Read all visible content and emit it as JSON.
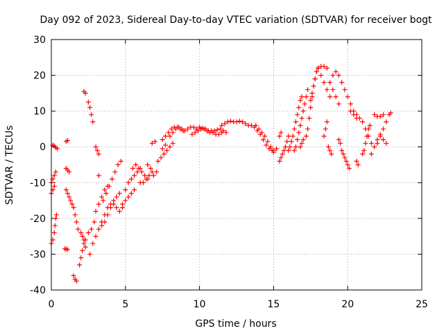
{
  "chart_data": {
    "type": "scatter",
    "title": "Day 092 of 2023, Sidereal Day-to-day VTEC variation (SDTVAR) for receiver bogt",
    "xlabel": "GPS time / hours",
    "ylabel": "SDTVAR / TECUs",
    "xlim": [
      0,
      25
    ],
    "ylim": [
      -40,
      30
    ],
    "x_ticks": [
      0,
      5,
      10,
      15,
      20,
      25
    ],
    "y_ticks": [
      -40,
      -30,
      -20,
      -10,
      0,
      10,
      20,
      30
    ],
    "x_tick_labels": [
      "0",
      "5",
      "10",
      "15",
      "20",
      "25"
    ],
    "y_tick_labels": [
      "-40",
      "-30",
      "-20",
      "-10",
      "0",
      "10",
      "20",
      "30"
    ],
    "grid": true,
    "marker": "plus",
    "color": "#ff0000",
    "series": [
      {
        "name": "SDTVAR",
        "points": [
          [
            0.0,
            -27
          ],
          [
            0.1,
            -26
          ],
          [
            0.2,
            -24
          ],
          [
            0.25,
            -22
          ],
          [
            0.3,
            -20
          ],
          [
            0.35,
            -19
          ],
          [
            0.0,
            -13
          ],
          [
            0.1,
            -12
          ],
          [
            0.2,
            -11
          ],
          [
            0.0,
            -10
          ],
          [
            0.1,
            -9
          ],
          [
            0.2,
            -8
          ],
          [
            0.3,
            -7
          ],
          [
            0.1,
            0.5
          ],
          [
            0.2,
            0.3
          ],
          [
            0.3,
            -0.2
          ],
          [
            0.4,
            -0.5
          ],
          [
            0.9,
            -28.5
          ],
          [
            1.0,
            -28.5
          ],
          [
            1.1,
            -28.7
          ],
          [
            1.0,
            -6
          ],
          [
            1.1,
            -6.5
          ],
          [
            1.2,
            -7
          ],
          [
            1.0,
            1.5
          ],
          [
            1.1,
            1.8
          ],
          [
            1.0,
            -12
          ],
          [
            1.1,
            -13
          ],
          [
            1.2,
            -14
          ],
          [
            1.3,
            -15
          ],
          [
            1.4,
            -16
          ],
          [
            1.5,
            -17
          ],
          [
            1.6,
            -19
          ],
          [
            1.7,
            -21
          ],
          [
            1.8,
            -23
          ],
          [
            1.5,
            -36
          ],
          [
            1.6,
            -37
          ],
          [
            1.7,
            -37.5
          ],
          [
            1.9,
            -33
          ],
          [
            2.0,
            -31
          ],
          [
            2.1,
            -29
          ],
          [
            2.2,
            -27
          ],
          [
            2.3,
            -26
          ],
          [
            2.0,
            -24
          ],
          [
            2.1,
            -25
          ],
          [
            2.2,
            -26
          ],
          [
            2.3,
            -28
          ],
          [
            2.2,
            15.5
          ],
          [
            2.3,
            15
          ],
          [
            2.5,
            12.5
          ],
          [
            2.6,
            11
          ],
          [
            2.7,
            9
          ],
          [
            2.8,
            7
          ],
          [
            2.5,
            -24
          ],
          [
            2.7,
            -23
          ],
          [
            2.9,
            -21
          ],
          [
            3.0,
            -18
          ],
          [
            3.2,
            -16
          ],
          [
            3.4,
            -14
          ],
          [
            3.6,
            -12
          ],
          [
            3.8,
            -11
          ],
          [
            2.6,
            -30
          ],
          [
            2.8,
            -27
          ],
          [
            3.0,
            -25
          ],
          [
            3.2,
            -23
          ],
          [
            3.4,
            -21
          ],
          [
            3.6,
            -19
          ],
          [
            3.8,
            -17
          ],
          [
            4.0,
            -16
          ],
          [
            4.2,
            -15
          ],
          [
            4.4,
            -14
          ],
          [
            4.6,
            -13
          ],
          [
            3.0,
            0
          ],
          [
            3.1,
            -1
          ],
          [
            3.2,
            -2
          ],
          [
            3.2,
            -8
          ],
          [
            3.4,
            -22
          ],
          [
            3.6,
            -21
          ],
          [
            3.8,
            -19
          ],
          [
            4.0,
            -17
          ],
          [
            4.2,
            -16
          ],
          [
            4.4,
            -17
          ],
          [
            4.6,
            -18
          ],
          [
            4.8,
            -17
          ],
          [
            3.5,
            -15
          ],
          [
            3.7,
            -13
          ],
          [
            3.9,
            -11
          ],
          [
            4.1,
            -9
          ],
          [
            4.3,
            -7
          ],
          [
            4.5,
            -5
          ],
          [
            4.7,
            -4
          ],
          [
            4.8,
            -16
          ],
          [
            5.0,
            -15
          ],
          [
            5.2,
            -14
          ],
          [
            5.4,
            -13
          ],
          [
            5.6,
            -12
          ],
          [
            5.0,
            -12
          ],
          [
            5.2,
            -10
          ],
          [
            5.4,
            -9
          ],
          [
            5.6,
            -8
          ],
          [
            5.8,
            -7
          ],
          [
            6.0,
            -6
          ],
          [
            5.5,
            -6
          ],
          [
            5.7,
            -5
          ],
          [
            5.9,
            -6
          ],
          [
            6.1,
            -7
          ],
          [
            6.3,
            -8
          ],
          [
            6.5,
            -9
          ],
          [
            6.0,
            -10
          ],
          [
            6.2,
            -10
          ],
          [
            6.4,
            -9
          ],
          [
            6.6,
            -8
          ],
          [
            6.8,
            -7
          ],
          [
            6.5,
            -5
          ],
          [
            6.7,
            -6
          ],
          [
            6.9,
            -8
          ],
          [
            7.1,
            -7
          ],
          [
            6.8,
            1
          ],
          [
            7.0,
            1.5
          ],
          [
            7.2,
            -4
          ],
          [
            7.4,
            -3
          ],
          [
            7.6,
            -2
          ],
          [
            7.8,
            -1
          ],
          [
            8.0,
            0
          ],
          [
            8.2,
            1
          ],
          [
            7.5,
            2
          ],
          [
            7.7,
            3
          ],
          [
            7.9,
            4
          ],
          [
            8.1,
            5
          ],
          [
            8.3,
            5.5
          ],
          [
            8.5,
            5.5
          ],
          [
            8.7,
            5
          ],
          [
            8.9,
            4.5
          ],
          [
            7.5,
            -0.5
          ],
          [
            7.7,
            0.5
          ],
          [
            8.0,
            3
          ],
          [
            8.2,
            4
          ],
          [
            8.4,
            5
          ],
          [
            8.6,
            5.5
          ],
          [
            8.8,
            5
          ],
          [
            9.0,
            4.5
          ],
          [
            9.2,
            5
          ],
          [
            9.4,
            5.5
          ],
          [
            9.6,
            5.5
          ],
          [
            9.8,
            5
          ],
          [
            9.5,
            3.5
          ],
          [
            9.7,
            4
          ],
          [
            9.9,
            4.5
          ],
          [
            10.1,
            5
          ],
          [
            10.3,
            5
          ],
          [
            10.5,
            4.5
          ],
          [
            10.7,
            4
          ],
          [
            10.9,
            4
          ],
          [
            11.1,
            3.5
          ],
          [
            11.3,
            3.5
          ],
          [
            11.5,
            4
          ],
          [
            10.0,
            5.5
          ],
          [
            10.2,
            5.2
          ],
          [
            10.4,
            5
          ],
          [
            10.6,
            4.5
          ],
          [
            10.8,
            4.5
          ],
          [
            11.0,
            4.5
          ],
          [
            11.2,
            4.8
          ],
          [
            11.4,
            5
          ],
          [
            11.6,
            4.5
          ],
          [
            11.8,
            4
          ],
          [
            11.5,
            6
          ],
          [
            11.7,
            6.5
          ],
          [
            11.9,
            7
          ],
          [
            12.1,
            7.2
          ],
          [
            12.3,
            7
          ],
          [
            12.5,
            7
          ],
          [
            12.7,
            7.2
          ],
          [
            12.9,
            7
          ],
          [
            13.1,
            6.5
          ],
          [
            13.3,
            6
          ],
          [
            13.5,
            6
          ],
          [
            13.7,
            5.5
          ],
          [
            13.9,
            4.5
          ],
          [
            14.1,
            3.5
          ],
          [
            14.3,
            2
          ],
          [
            14.5,
            0.5
          ],
          [
            14.7,
            -0.5
          ],
          [
            14.9,
            -1
          ],
          [
            13.8,
            6
          ],
          [
            14.0,
            5
          ],
          [
            14.2,
            4
          ],
          [
            14.4,
            3
          ],
          [
            14.6,
            1.5
          ],
          [
            14.8,
            0
          ],
          [
            15.0,
            -1
          ],
          [
            15.0,
            -1.5
          ],
          [
            15.2,
            -0.5
          ],
          [
            15.4,
            -4
          ],
          [
            15.5,
            -3
          ],
          [
            15.6,
            -2
          ],
          [
            15.7,
            -1
          ],
          [
            15.8,
            0
          ],
          [
            15.9,
            1.5
          ],
          [
            16.0,
            3
          ],
          [
            15.4,
            3
          ],
          [
            15.5,
            4
          ],
          [
            16.0,
            -1
          ],
          [
            16.1,
            0
          ],
          [
            16.2,
            1.5
          ],
          [
            16.3,
            3
          ],
          [
            16.4,
            5
          ],
          [
            16.5,
            7
          ],
          [
            16.6,
            9
          ],
          [
            16.7,
            11
          ],
          [
            16.8,
            13
          ],
          [
            16.9,
            14
          ],
          [
            16.4,
            -1
          ],
          [
            16.5,
            0
          ],
          [
            16.6,
            2
          ],
          [
            16.7,
            4
          ],
          [
            16.8,
            6
          ],
          [
            16.9,
            8
          ],
          [
            17.0,
            10
          ],
          [
            17.1,
            12
          ],
          [
            17.2,
            14
          ],
          [
            17.3,
            16
          ],
          [
            16.8,
            0
          ],
          [
            16.9,
            1
          ],
          [
            17.0,
            2
          ],
          [
            17.5,
            13
          ],
          [
            17.6,
            15
          ],
          [
            17.7,
            17
          ],
          [
            17.8,
            19
          ],
          [
            17.9,
            21
          ],
          [
            18.0,
            22
          ],
          [
            17.2,
            3
          ],
          [
            17.3,
            5
          ],
          [
            17.4,
            8
          ],
          [
            17.5,
            11
          ],
          [
            17.6,
            14
          ],
          [
            17.7,
            17
          ],
          [
            17.8,
            19
          ],
          [
            17.9,
            21
          ],
          [
            18.0,
            22
          ],
          [
            18.2,
            22.5
          ],
          [
            18.4,
            22.5
          ],
          [
            18.6,
            22
          ],
          [
            18.0,
            22
          ],
          [
            18.2,
            20
          ],
          [
            18.4,
            18
          ],
          [
            18.6,
            16
          ],
          [
            18.8,
            14
          ],
          [
            18.8,
            18
          ],
          [
            19.0,
            16
          ],
          [
            19.2,
            14
          ],
          [
            19.4,
            12
          ],
          [
            19.0,
            20
          ],
          [
            19.2,
            21
          ],
          [
            19.4,
            20
          ],
          [
            18.4,
            3
          ],
          [
            18.5,
            5
          ],
          [
            18.6,
            7
          ],
          [
            18.7,
            0
          ],
          [
            18.8,
            -1
          ],
          [
            18.9,
            -2
          ],
          [
            19.4,
            2
          ],
          [
            19.5,
            1
          ],
          [
            19.6,
            -1
          ],
          [
            19.7,
            -2
          ],
          [
            19.8,
            -3
          ],
          [
            19.9,
            -4
          ],
          [
            20.0,
            -5
          ],
          [
            20.1,
            -6
          ],
          [
            19.6,
            18
          ],
          [
            19.8,
            16
          ],
          [
            20.0,
            14
          ],
          [
            20.2,
            12
          ],
          [
            20.4,
            10
          ],
          [
            20.6,
            9
          ],
          [
            20.8,
            8
          ],
          [
            21.0,
            7
          ],
          [
            21.2,
            5
          ],
          [
            21.4,
            3
          ],
          [
            21.6,
            1
          ],
          [
            20.2,
            10
          ],
          [
            20.4,
            9
          ],
          [
            20.6,
            8
          ],
          [
            20.6,
            -4
          ],
          [
            20.7,
            -5
          ],
          [
            21.0,
            -2
          ],
          [
            21.1,
            -1
          ],
          [
            21.2,
            1
          ],
          [
            21.3,
            3
          ],
          [
            21.4,
            5
          ],
          [
            21.5,
            6
          ],
          [
            21.6,
            -2
          ],
          [
            21.8,
            0
          ],
          [
            22.0,
            2
          ],
          [
            22.2,
            3.5
          ],
          [
            22.4,
            2
          ],
          [
            22.6,
            1
          ],
          [
            21.8,
            9
          ],
          [
            22.0,
            8.5
          ],
          [
            22.2,
            8.5
          ],
          [
            22.4,
            9
          ],
          [
            22.0,
            1
          ],
          [
            22.2,
            3
          ],
          [
            22.4,
            5
          ],
          [
            22.6,
            7
          ],
          [
            22.8,
            9
          ],
          [
            22.9,
            9.5
          ]
        ]
      }
    ]
  }
}
